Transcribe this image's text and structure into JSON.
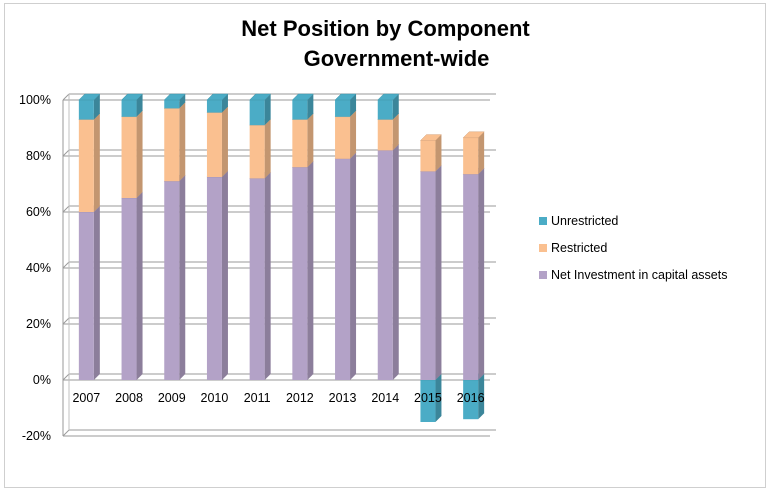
{
  "chart_data": {
    "type": "bar",
    "stacked": true,
    "three_d": true,
    "title": "Net Position by Component",
    "subtitle": "Government-wide",
    "xlabel": "",
    "ylabel": "",
    "ylim": [
      -20,
      100
    ],
    "yticks": [
      "-20%",
      "0%",
      "20%",
      "40%",
      "60%",
      "80%",
      "100%"
    ],
    "ytick_values": [
      -20,
      0,
      20,
      40,
      60,
      80,
      100
    ],
    "grid": true,
    "legend_position": "right",
    "categories": [
      "2007",
      "2008",
      "2009",
      "2010",
      "2011",
      "2012",
      "2013",
      "2014",
      "2015",
      "2016"
    ],
    "series": [
      {
        "name": "Net Investment in capital assets",
        "color": "#b3a2c7",
        "values": [
          60,
          65,
          71,
          72.5,
          72,
          76,
          79,
          82,
          74.5,
          73.5
        ]
      },
      {
        "name": "Restricted",
        "color": "#fac090",
        "values": [
          33,
          29,
          26,
          23,
          19,
          17,
          15,
          11,
          11,
          13
        ]
      },
      {
        "name": "Unrestricted",
        "color": "#4bacc6",
        "values": [
          7,
          6,
          3,
          4.5,
          9,
          7,
          6,
          7,
          -15,
          -14
        ]
      }
    ],
    "legend_order": [
      "Unrestricted",
      "Restricted",
      "Net Investment in capital assets"
    ]
  }
}
